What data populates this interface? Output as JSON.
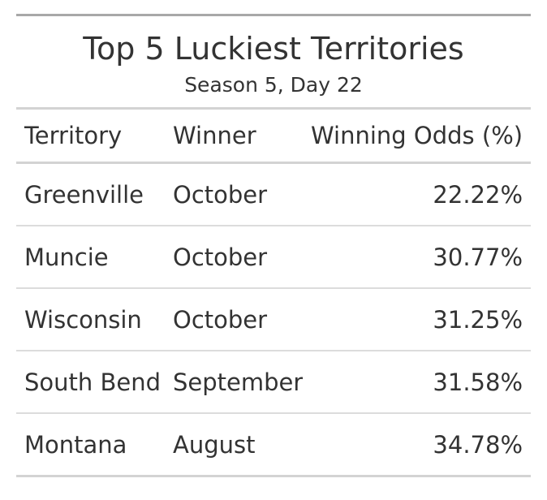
{
  "chart_data": {
    "type": "table",
    "title": "Top 5 Luckiest Territories",
    "subtitle": "Season 5, Day 22",
    "columns": [
      "Territory",
      "Winner",
      "Winning Odds (%)"
    ],
    "rows": [
      {
        "territory": "Greenville",
        "winner": "October",
        "odds": "22.22%"
      },
      {
        "territory": "Muncie",
        "winner": "October",
        "odds": "30.77%"
      },
      {
        "territory": "Wisconsin",
        "winner": "October",
        "odds": "31.25%"
      },
      {
        "territory": "South Bend",
        "winner": "September",
        "odds": "31.58%"
      },
      {
        "territory": "Montana",
        "winner": "August",
        "odds": "34.78%"
      }
    ]
  }
}
